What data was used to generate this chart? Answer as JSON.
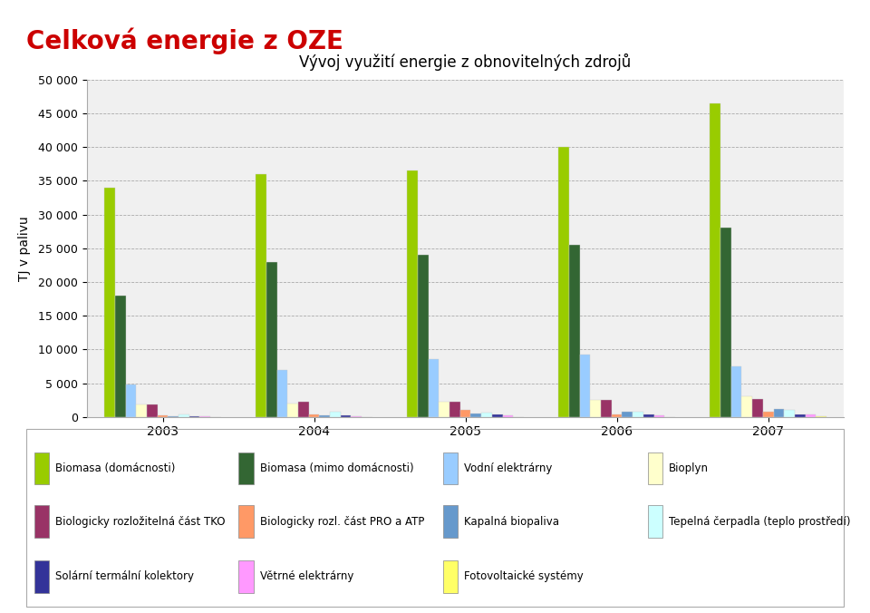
{
  "title": "Vývoj využití energie z obnovitelných zdrojů",
  "header_title": "Celková energie z OZE",
  "ylabel": "TJ v palivu",
  "years": [
    2003,
    2004,
    2005,
    2006,
    2007
  ],
  "series": {
    "Biomasa (domácnosti)": [
      34000,
      36000,
      36500,
      40000,
      46500
    ],
    "Biomasa (mimo domácnosti)": [
      18000,
      23000,
      24000,
      25500,
      28000
    ],
    "Vodní elektrárny": [
      4800,
      7000,
      8500,
      9200,
      7500
    ],
    "Bioplyn": [
      1800,
      2000,
      2200,
      2500,
      3000
    ],
    "Biologicky rozložitelná část TKO": [
      1900,
      2200,
      2300,
      2500,
      2600
    ],
    "Biologicky rozl. část PRO a ATP": [
      200,
      300,
      1000,
      300,
      700
    ],
    "Kapalná biopaliva": [
      100,
      200,
      500,
      700,
      1200
    ],
    "Tepelná čerpadla (teplo prostředí)": [
      300,
      700,
      600,
      800,
      1100
    ],
    "Solární termální kolektory": [
      100,
      200,
      300,
      300,
      400
    ],
    "Větrné elektrárny": [
      100,
      100,
      200,
      200,
      400
    ],
    "Fotovoltaické systémy": [
      10,
      10,
      10,
      20,
      50
    ]
  },
  "colors": {
    "Biomasa (domácnosti)": "#99CC00",
    "Biomasa (mimo domácnosti)": "#336633",
    "Vodní elektrárny": "#99CCFF",
    "Bioplyn": "#FFFFCC",
    "Biologicky rozložitelná část TKO": "#993366",
    "Biologicky rozl. část PRO a ATP": "#FF9966",
    "Kapalná biopaliva": "#6699CC",
    "Tepelná čerpadla (teplo prostředí)": "#CCFFFF",
    "Solární termální kolektory": "#333399",
    "Větrné elektrárny": "#FF99FF",
    "Fotovoltaické systémy": "#FFFF66"
  },
  "legend_layout": [
    [
      "Biomasa (domácnosti)",
      "Biomasa (mimo domácnosti)",
      "Vodní elektrárny",
      "Bioplyn"
    ],
    [
      "Biologicky rozložitelná část TKO",
      "Biologicky rozl. část PRO a ATP",
      "Kapalná biopaliva",
      "Tepelná čerpadla (teplo prostředí)"
    ],
    [
      "Solární termální kolektory",
      "Větrné elektrárny",
      "Fotovoltaické systémy",
      null
    ]
  ],
  "ylim": [
    0,
    50000
  ],
  "yticks": [
    0,
    5000,
    10000,
    15000,
    20000,
    25000,
    30000,
    35000,
    40000,
    45000,
    50000
  ],
  "ytick_labels": [
    "0",
    "5 000",
    "10 000",
    "15 000",
    "20 000",
    "25 000",
    "30 000",
    "35 000",
    "40 000",
    "45 000",
    "50 000"
  ],
  "bg_color": "#FFFFFF",
  "plot_bg_color": "#F0F0F0",
  "header_color": "#CC0000",
  "header_line_color": "#CC0000",
  "navy_bar_color": "#1F3864",
  "title_fontsize": 12,
  "header_fontsize": 20
}
